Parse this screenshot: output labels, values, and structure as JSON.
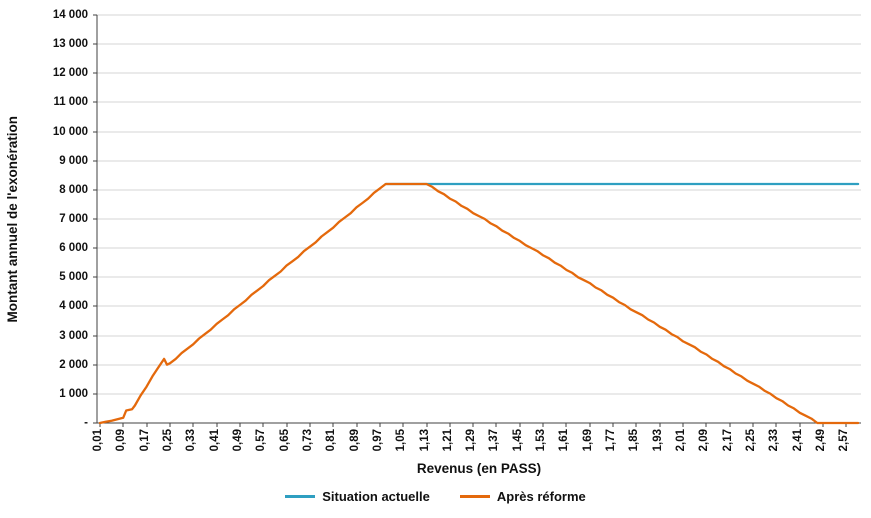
{
  "chart_data": {
    "type": "line",
    "title": "",
    "xlabel": "Revenus (en PASS)",
    "ylabel": "Montant annuel de l'exonération",
    "x_range": [
      0,
      2.62
    ],
    "y_range": [
      0,
      14000
    ],
    "grid": true,
    "grid_color": "#d6d6d6",
    "axis_color": "#404040",
    "legend_position": "bottom",
    "y_tick_values": [
      0,
      1000,
      2000,
      3000,
      4000,
      5000,
      6000,
      7000,
      8000,
      9000,
      10000,
      11000,
      12000,
      13000,
      14000
    ],
    "y_tick_labels": [
      "-",
      "1 000",
      "2 000",
      "3 000",
      "4 000",
      "5 000",
      "6 000",
      "7 000",
      "8 000",
      "9 000",
      "10 000",
      "11 000",
      "12 000",
      "13 000",
      "14 000"
    ],
    "x_tick_labels": [
      "0,01",
      "0,09",
      "0,17",
      "0,25",
      "0,33",
      "0,41",
      "0,49",
      "0,57",
      "0,65",
      "0,73",
      "0,81",
      "0,89",
      "0,97",
      "1,05",
      "1,13",
      "1,21",
      "1,29",
      "1,37",
      "1,45",
      "1,53",
      "1,61",
      "1,69",
      "1,77",
      "1,85",
      "1,93",
      "2,01",
      "2,09",
      "2,17",
      "2,25",
      "2,33",
      "2,41",
      "2,49",
      "2,57"
    ],
    "series": [
      {
        "name": "Situation actuelle",
        "color": "#2e9fc1",
        "points": [
          [
            0.99,
            8200
          ],
          [
            2.61,
            8200
          ]
        ]
      },
      {
        "name": "Après réforme",
        "color": "#e4690c",
        "points": [
          [
            0.01,
            0
          ],
          [
            0.03,
            40
          ],
          [
            0.05,
            80
          ],
          [
            0.07,
            130
          ],
          [
            0.09,
            180
          ],
          [
            0.1,
            430
          ],
          [
            0.11,
            450
          ],
          [
            0.12,
            470
          ],
          [
            0.13,
            600
          ],
          [
            0.15,
            950
          ],
          [
            0.17,
            1250
          ],
          [
            0.19,
            1600
          ],
          [
            0.21,
            1900
          ],
          [
            0.23,
            2200
          ],
          [
            0.24,
            2000
          ],
          [
            0.25,
            2050
          ],
          [
            0.27,
            2200
          ],
          [
            0.29,
            2400
          ],
          [
            0.31,
            2550
          ],
          [
            0.33,
            2700
          ],
          [
            0.35,
            2900
          ],
          [
            0.37,
            3050
          ],
          [
            0.39,
            3200
          ],
          [
            0.41,
            3400
          ],
          [
            0.43,
            3550
          ],
          [
            0.45,
            3700
          ],
          [
            0.47,
            3900
          ],
          [
            0.49,
            4050
          ],
          [
            0.51,
            4200
          ],
          [
            0.53,
            4400
          ],
          [
            0.55,
            4550
          ],
          [
            0.57,
            4700
          ],
          [
            0.59,
            4900
          ],
          [
            0.61,
            5050
          ],
          [
            0.63,
            5200
          ],
          [
            0.65,
            5400
          ],
          [
            0.67,
            5550
          ],
          [
            0.69,
            5700
          ],
          [
            0.71,
            5900
          ],
          [
            0.73,
            6050
          ],
          [
            0.75,
            6200
          ],
          [
            0.77,
            6400
          ],
          [
            0.79,
            6550
          ],
          [
            0.81,
            6700
          ],
          [
            0.83,
            6900
          ],
          [
            0.85,
            7050
          ],
          [
            0.87,
            7200
          ],
          [
            0.89,
            7400
          ],
          [
            0.91,
            7550
          ],
          [
            0.93,
            7700
          ],
          [
            0.95,
            7900
          ],
          [
            0.97,
            8050
          ],
          [
            0.99,
            8200
          ],
          [
            1.01,
            8200
          ],
          [
            1.03,
            8200
          ],
          [
            1.05,
            8200
          ],
          [
            1.07,
            8200
          ],
          [
            1.09,
            8200
          ],
          [
            1.11,
            8200
          ],
          [
            1.13,
            8200
          ],
          [
            1.15,
            8100
          ],
          [
            1.17,
            7950
          ],
          [
            1.19,
            7850
          ],
          [
            1.21,
            7700
          ],
          [
            1.23,
            7600
          ],
          [
            1.25,
            7450
          ],
          [
            1.27,
            7350
          ],
          [
            1.29,
            7200
          ],
          [
            1.31,
            7100
          ],
          [
            1.33,
            7000
          ],
          [
            1.35,
            6850
          ],
          [
            1.37,
            6750
          ],
          [
            1.39,
            6600
          ],
          [
            1.41,
            6500
          ],
          [
            1.43,
            6350
          ],
          [
            1.45,
            6250
          ],
          [
            1.47,
            6100
          ],
          [
            1.49,
            6000
          ],
          [
            1.51,
            5900
          ],
          [
            1.53,
            5750
          ],
          [
            1.55,
            5650
          ],
          [
            1.57,
            5500
          ],
          [
            1.59,
            5400
          ],
          [
            1.61,
            5250
          ],
          [
            1.63,
            5150
          ],
          [
            1.65,
            5000
          ],
          [
            1.67,
            4900
          ],
          [
            1.69,
            4800
          ],
          [
            1.71,
            4650
          ],
          [
            1.73,
            4550
          ],
          [
            1.75,
            4400
          ],
          [
            1.77,
            4300
          ],
          [
            1.79,
            4150
          ],
          [
            1.81,
            4050
          ],
          [
            1.83,
            3900
          ],
          [
            1.85,
            3800
          ],
          [
            1.87,
            3700
          ],
          [
            1.89,
            3550
          ],
          [
            1.91,
            3450
          ],
          [
            1.93,
            3300
          ],
          [
            1.95,
            3200
          ],
          [
            1.97,
            3050
          ],
          [
            1.99,
            2950
          ],
          [
            2.01,
            2800
          ],
          [
            2.03,
            2700
          ],
          [
            2.05,
            2600
          ],
          [
            2.07,
            2450
          ],
          [
            2.09,
            2350
          ],
          [
            2.11,
            2200
          ],
          [
            2.13,
            2100
          ],
          [
            2.15,
            1950
          ],
          [
            2.17,
            1850
          ],
          [
            2.19,
            1700
          ],
          [
            2.21,
            1600
          ],
          [
            2.23,
            1450
          ],
          [
            2.25,
            1350
          ],
          [
            2.27,
            1250
          ],
          [
            2.29,
            1100
          ],
          [
            2.31,
            1000
          ],
          [
            2.33,
            850
          ],
          [
            2.35,
            750
          ],
          [
            2.37,
            600
          ],
          [
            2.39,
            500
          ],
          [
            2.41,
            350
          ],
          [
            2.43,
            250
          ],
          [
            2.45,
            150
          ],
          [
            2.47,
            0
          ],
          [
            2.49,
            0
          ],
          [
            2.51,
            0
          ],
          [
            2.53,
            0
          ],
          [
            2.55,
            0
          ],
          [
            2.57,
            0
          ],
          [
            2.59,
            0
          ],
          [
            2.61,
            0
          ]
        ]
      }
    ]
  }
}
